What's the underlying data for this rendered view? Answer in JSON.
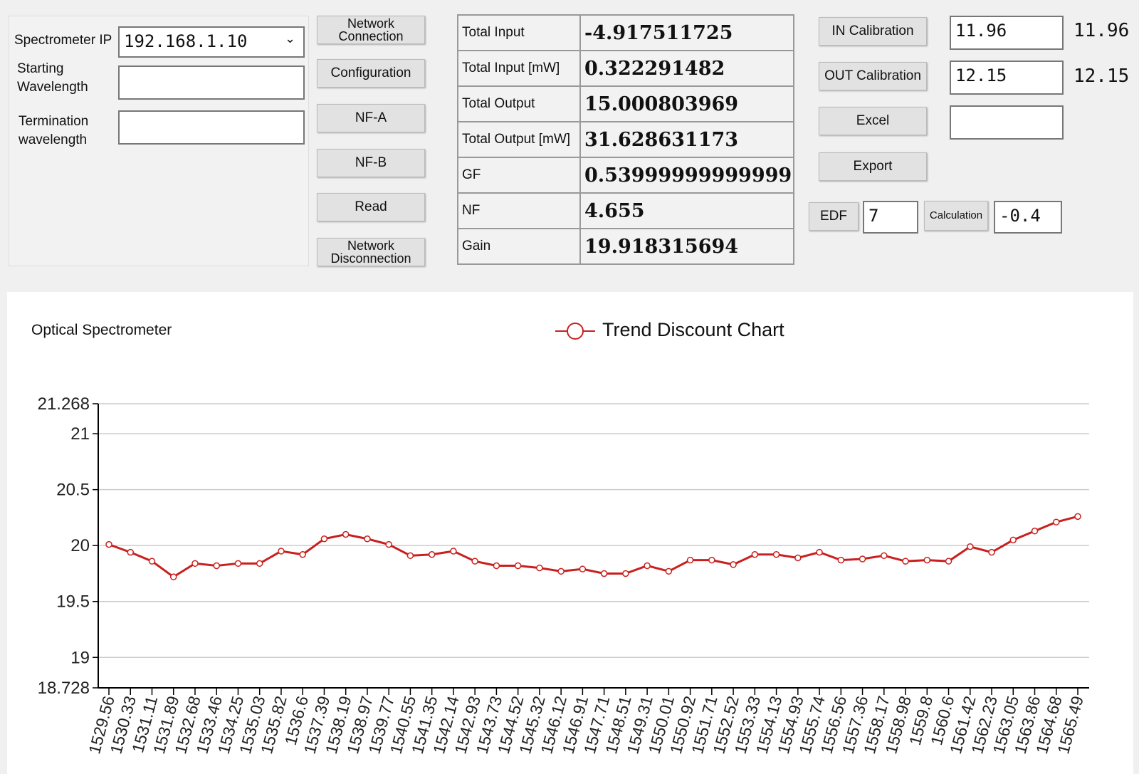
{
  "left": {
    "ip_label": "Spectrometer IP",
    "ip_value": "192.168.1.10",
    "start_label": "Starting\nWavelength",
    "start_value": "",
    "term_label": "Termination\nwavelength",
    "term_value": ""
  },
  "buttons": {
    "connect": "Network Connection",
    "config": "Configuration",
    "nfa": "NF-A",
    "nfb": "NF-B",
    "read": "Read",
    "disconnect": "Network Disconnection",
    "in_cal": "IN Calibration",
    "out_cal": "OUT Calibration",
    "excel": "Excel",
    "export": "Export",
    "edf": "EDF",
    "calc": "Calculation"
  },
  "results": [
    {
      "label": "Total Input",
      "value": "-4.917511725"
    },
    {
      "label": "Total Input [mW]",
      "value": "0.322291482"
    },
    {
      "label": "Total Output",
      "value": "15.000803969"
    },
    {
      "label": "Total Output [mW]",
      "value": "31.628631173"
    },
    {
      "label": "GF",
      "value": "0.53999999999999"
    },
    {
      "label": "NF",
      "value": "4.655"
    },
    {
      "label": "Gain",
      "value": "19.918315694"
    }
  ],
  "right": {
    "in_cal_input": "11.96",
    "in_cal_readout": "11.96",
    "out_cal_input": "12.15",
    "out_cal_readout": "12.15",
    "excel_input": "",
    "edf_input": "7",
    "calc_output": "-0.4"
  },
  "chart_data": {
    "type": "line",
    "title": "Optical Spectrometer",
    "legend": "Trend Discount Chart",
    "legend_position": "top-center",
    "color": "#c8201e",
    "ylim": [
      18.728,
      21.268
    ],
    "yticks": [
      "21.268",
      "21",
      "20.5",
      "20",
      "19.5",
      "19",
      "18.728"
    ],
    "x": [
      "1529.56",
      "1530.33",
      "1531.11",
      "1531.89",
      "1532.68",
      "1533.46",
      "1534.25",
      "1535.03",
      "1535.82",
      "1536.6",
      "1537.39",
      "1538.19",
      "1538.97",
      "1539.77",
      "1540.55",
      "1541.35",
      "1542.14",
      "1542.93",
      "1543.73",
      "1544.52",
      "1545.32",
      "1546.12",
      "1546.91",
      "1547.71",
      "1548.51",
      "1549.31",
      "1550.01",
      "1550.92",
      "1551.71",
      "1552.52",
      "1553.33",
      "1554.13",
      "1554.93",
      "1555.74",
      "1556.56",
      "1557.36",
      "1558.17",
      "1558.98",
      "1559.8",
      "1560.6",
      "1561.42",
      "1562.23",
      "1563.05",
      "1563.86",
      "1564.68",
      "1565.49"
    ],
    "values": [
      20.01,
      19.94,
      19.86,
      19.72,
      19.84,
      19.82,
      19.84,
      19.84,
      19.95,
      19.92,
      20.06,
      20.1,
      20.06,
      20.01,
      19.91,
      19.92,
      19.95,
      19.86,
      19.82,
      19.82,
      19.8,
      19.77,
      19.79,
      19.75,
      19.75,
      19.82,
      19.77,
      19.87,
      19.87,
      19.83,
      19.92,
      19.92,
      19.89,
      19.94,
      19.87,
      19.88,
      19.91,
      19.86,
      19.87,
      19.86,
      19.99,
      19.94,
      20.05,
      20.13,
      20.21,
      20.26
    ],
    "grid": true
  }
}
